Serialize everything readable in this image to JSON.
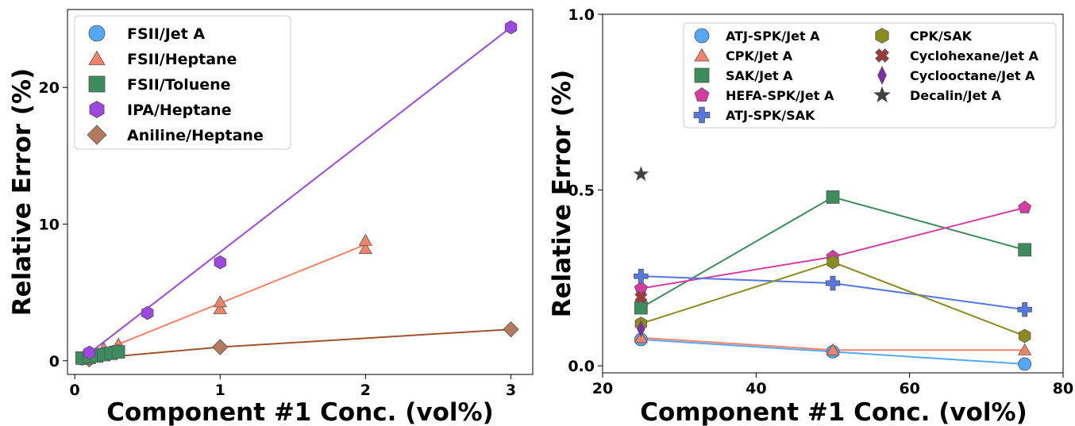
{
  "chart_data": [
    {
      "type": "scatter",
      "title": "",
      "xlabel": "Component #1 Conc. (vol%)",
      "ylabel": "Relative Error (%)",
      "xlim": [
        -0.05,
        3.15
      ],
      "ylim": [
        -1.0,
        25.7
      ],
      "xticks": [
        "0",
        "1",
        "2",
        "3"
      ],
      "yticks": [
        "0",
        "10",
        "20"
      ],
      "legend": "top-left",
      "series": [
        {
          "name": "FSII/Jet A",
          "color": "#55a8f5",
          "marker": "circle",
          "points": [
            [
              0.05,
              0.15
            ],
            [
              0.1,
              0.3
            ],
            [
              0.15,
              0.4
            ],
            [
              0.2,
              0.5
            ],
            [
              0.25,
              0.6
            ],
            [
              0.3,
              0.7
            ]
          ],
          "fit": null
        },
        {
          "name": "FSII/Heptane",
          "color": "#f7826a",
          "marker": "triangle",
          "points": [
            [
              0.1,
              0.6
            ],
            [
              0.2,
              0.9
            ],
            [
              0.3,
              1.2
            ],
            [
              1.0,
              3.8
            ],
            [
              1.0,
              4.3
            ],
            [
              2.0,
              8.2
            ],
            [
              2.0,
              8.8
            ]
          ],
          "fit": [
            [
              0.1,
              0.35
            ],
            [
              2.0,
              8.5
            ]
          ]
        },
        {
          "name": "FSII/Toluene",
          "color": "#3d8c5c",
          "marker": "square",
          "points": [
            [
              0.05,
              0.2
            ],
            [
              0.1,
              0.25
            ],
            [
              0.15,
              0.35
            ],
            [
              0.2,
              0.45
            ],
            [
              0.25,
              0.55
            ],
            [
              0.3,
              0.65
            ]
          ],
          "fit": null
        },
        {
          "name": "IPA/Heptane",
          "color": "#9b47e0",
          "marker": "hexagon",
          "points": [
            [
              0.1,
              0.6
            ],
            [
              0.5,
              3.5
            ],
            [
              1.0,
              7.2
            ],
            [
              3.0,
              24.4
            ]
          ],
          "fit": [
            [
              0.1,
              0.55
            ],
            [
              3.0,
              24.4
            ]
          ]
        },
        {
          "name": "Aniline/Heptane",
          "color": "#b57a5e",
          "marker": "diamond",
          "points": [
            [
              0.1,
              0.1
            ],
            [
              1.0,
              1.0
            ],
            [
              3.0,
              2.3
            ]
          ],
          "fit": [
            [
              0.1,
              0.15
            ],
            [
              1.0,
              1.0
            ],
            [
              3.0,
              2.3
            ]
          ],
          "fitColor": "#a0522d"
        }
      ]
    },
    {
      "type": "line",
      "title": "",
      "xlabel": "Component #1 Conc. (vol%)",
      "ylabel": "Relative Error (%)",
      "xlim": [
        20,
        80
      ],
      "ylim": [
        -0.02,
        1.0
      ],
      "xticks": [
        "20",
        "40",
        "60",
        "80"
      ],
      "yticks": [
        "0.0",
        "0.5",
        "1.0"
      ],
      "legend": "top-right",
      "series": [
        {
          "name": "ATJ-SPK/Jet A",
          "color": "#55a8f5",
          "marker": "circle",
          "line": true,
          "x": [
            25,
            50,
            75
          ],
          "y": [
            0.075,
            0.04,
            0.005
          ]
        },
        {
          "name": "CPK/Jet A",
          "color": "#f7826a",
          "marker": "triangle",
          "line": true,
          "x": [
            25,
            50,
            75
          ],
          "y": [
            0.08,
            0.045,
            0.045
          ]
        },
        {
          "name": "SAK/Jet A",
          "color": "#3d8c5c",
          "marker": "square",
          "line": true,
          "x": [
            25,
            50,
            75
          ],
          "y": [
            0.165,
            0.48,
            0.33
          ]
        },
        {
          "name": "HEFA-SPK/Jet A",
          "color": "#d63ca4",
          "marker": "pentagon",
          "line": true,
          "x": [
            25,
            50,
            75
          ],
          "y": [
            0.22,
            0.31,
            0.45
          ]
        },
        {
          "name": "ATJ-SPK/SAK",
          "color": "#5577e0",
          "marker": "plus",
          "line": true,
          "x": [
            25,
            50,
            75
          ],
          "y": [
            0.255,
            0.235,
            0.16
          ]
        },
        {
          "name": "CPK/SAK",
          "color": "#8b8b1e",
          "marker": "hexagon",
          "line": true,
          "x": [
            25,
            50,
            75
          ],
          "y": [
            0.12,
            0.295,
            0.085
          ]
        },
        {
          "name": "Cyclohexane/Jet A",
          "color": "#a03a3a",
          "marker": "x",
          "line": false,
          "x": [
            25
          ],
          "y": [
            0.195
          ]
        },
        {
          "name": "Cyclooctane/Jet A",
          "color": "#7e2fa8",
          "marker": "thin-diamond",
          "line": false,
          "x": [
            25
          ],
          "y": [
            0.105
          ]
        },
        {
          "name": "Decalin/Jet A",
          "color": "#404040",
          "marker": "star",
          "line": false,
          "x": [
            25
          ],
          "y": [
            0.545
          ]
        }
      ]
    }
  ]
}
